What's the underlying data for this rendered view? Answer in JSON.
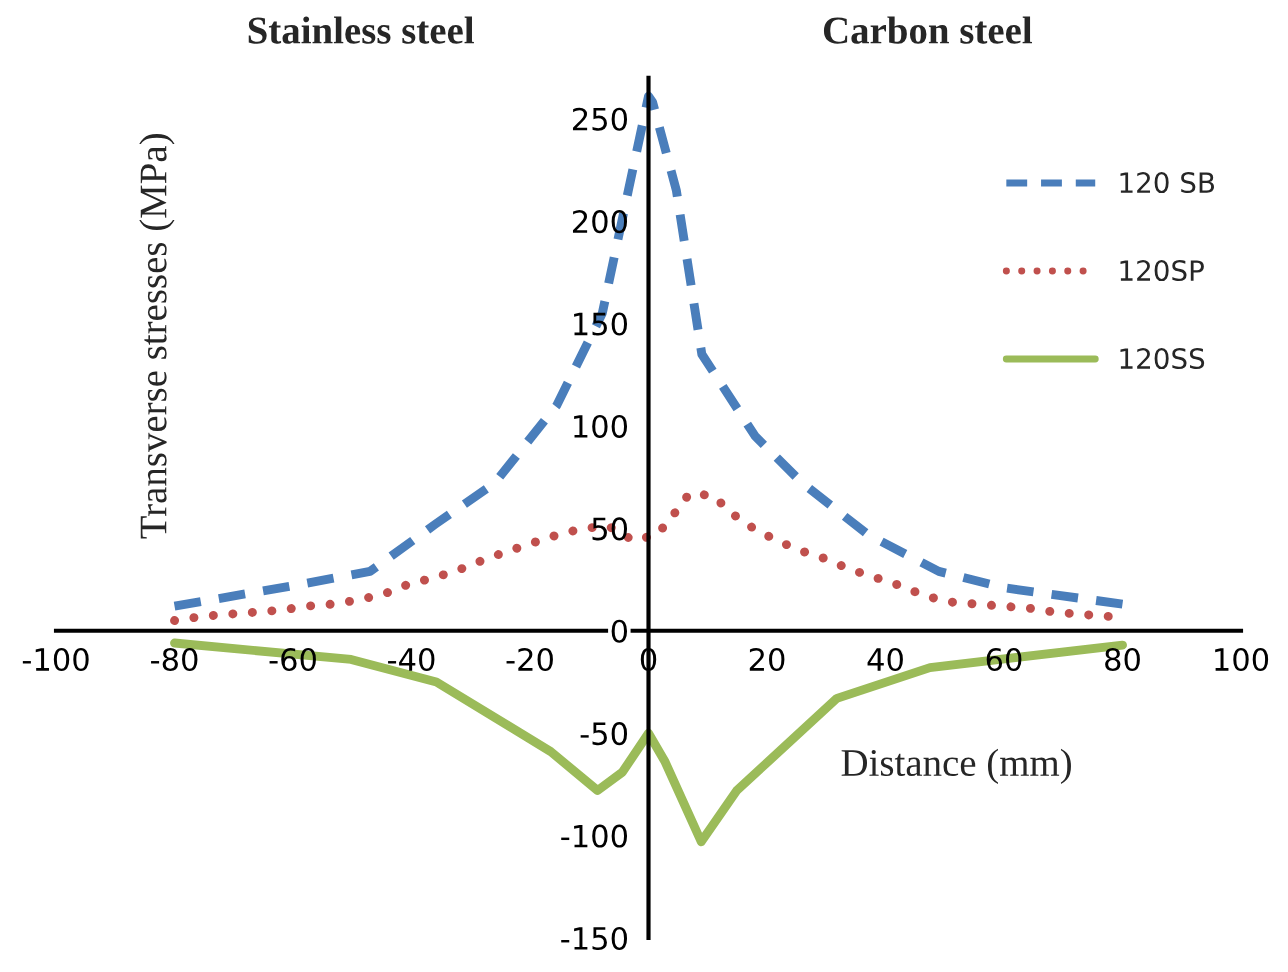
{
  "chart_data": {
    "type": "line",
    "xlabel": "Distance (mm)",
    "ylabel": "Transverse stresses (MPa)",
    "annotations": [
      "Stainless steel",
      "Carbon steel"
    ],
    "xlim": [
      -100,
      100
    ],
    "xticks": [
      -100,
      -80,
      -60,
      -40,
      -20,
      0,
      20,
      40,
      60,
      80,
      100
    ],
    "ylim": [
      -150,
      270
    ],
    "yticks": [
      -150,
      -100,
      -50,
      0,
      50,
      100,
      150,
      200,
      250
    ],
    "grid": false,
    "legend": "top right",
    "marker": "none",
    "series": [
      {
        "name": "120 SB",
        "color": "#4a7ebb",
        "line_style": "dashed",
        "x": [
          -80,
          -60,
          -47,
          -36,
          -26,
          -15.5,
          -7.8,
          -3.4,
          0,
          0.7,
          4.7,
          9,
          18,
          26,
          37,
          49,
          60,
          80
        ],
        "values": [
          12,
          22,
          29,
          52,
          72,
          110,
          155,
          215,
          261,
          258,
          215,
          135,
          95,
          72,
          47,
          29,
          21,
          13
        ]
      },
      {
        "name": "120SP",
        "color": "#c0504d",
        "line_style": "dotted",
        "x": [
          -80,
          -75.4,
          -71.1,
          -66.6,
          -62.2,
          -57.7,
          -53.4,
          -49,
          -44.6,
          -40.3,
          -36,
          -31.8,
          -27.5,
          -23.6,
          -19.4,
          -15.2,
          -11,
          -6.7,
          -2.5,
          1.5,
          4.3,
          6.9,
          10.9,
          14.2,
          17.7,
          21.7,
          25.8,
          30,
          34,
          38.3,
          42.5,
          46.7,
          51,
          55.4,
          59.8,
          64.3,
          68.8,
          73,
          77.6
        ],
        "values": [
          5,
          7,
          8,
          9,
          10,
          12,
          13,
          15,
          18,
          23,
          26,
          30,
          35,
          39,
          43,
          47,
          50,
          51,
          44,
          47,
          57,
          67,
          66,
          57,
          50,
          44,
          39,
          35,
          30,
          26,
          22,
          17,
          14,
          13,
          12,
          11,
          9,
          8,
          7
        ]
      },
      {
        "name": "120SS",
        "color": "#9bbb59",
        "line_style": "solid",
        "x": [
          -80,
          -50.2,
          -35.8,
          -16.5,
          -8.6,
          -4.4,
          0,
          2.8,
          8.9,
          14.9,
          31.8,
          47.5,
          80
        ],
        "values": [
          -6,
          -14,
          -25,
          -59,
          -78,
          -69,
          -50,
          -64,
          -103,
          -78,
          -33,
          -18,
          -7
        ]
      }
    ]
  }
}
